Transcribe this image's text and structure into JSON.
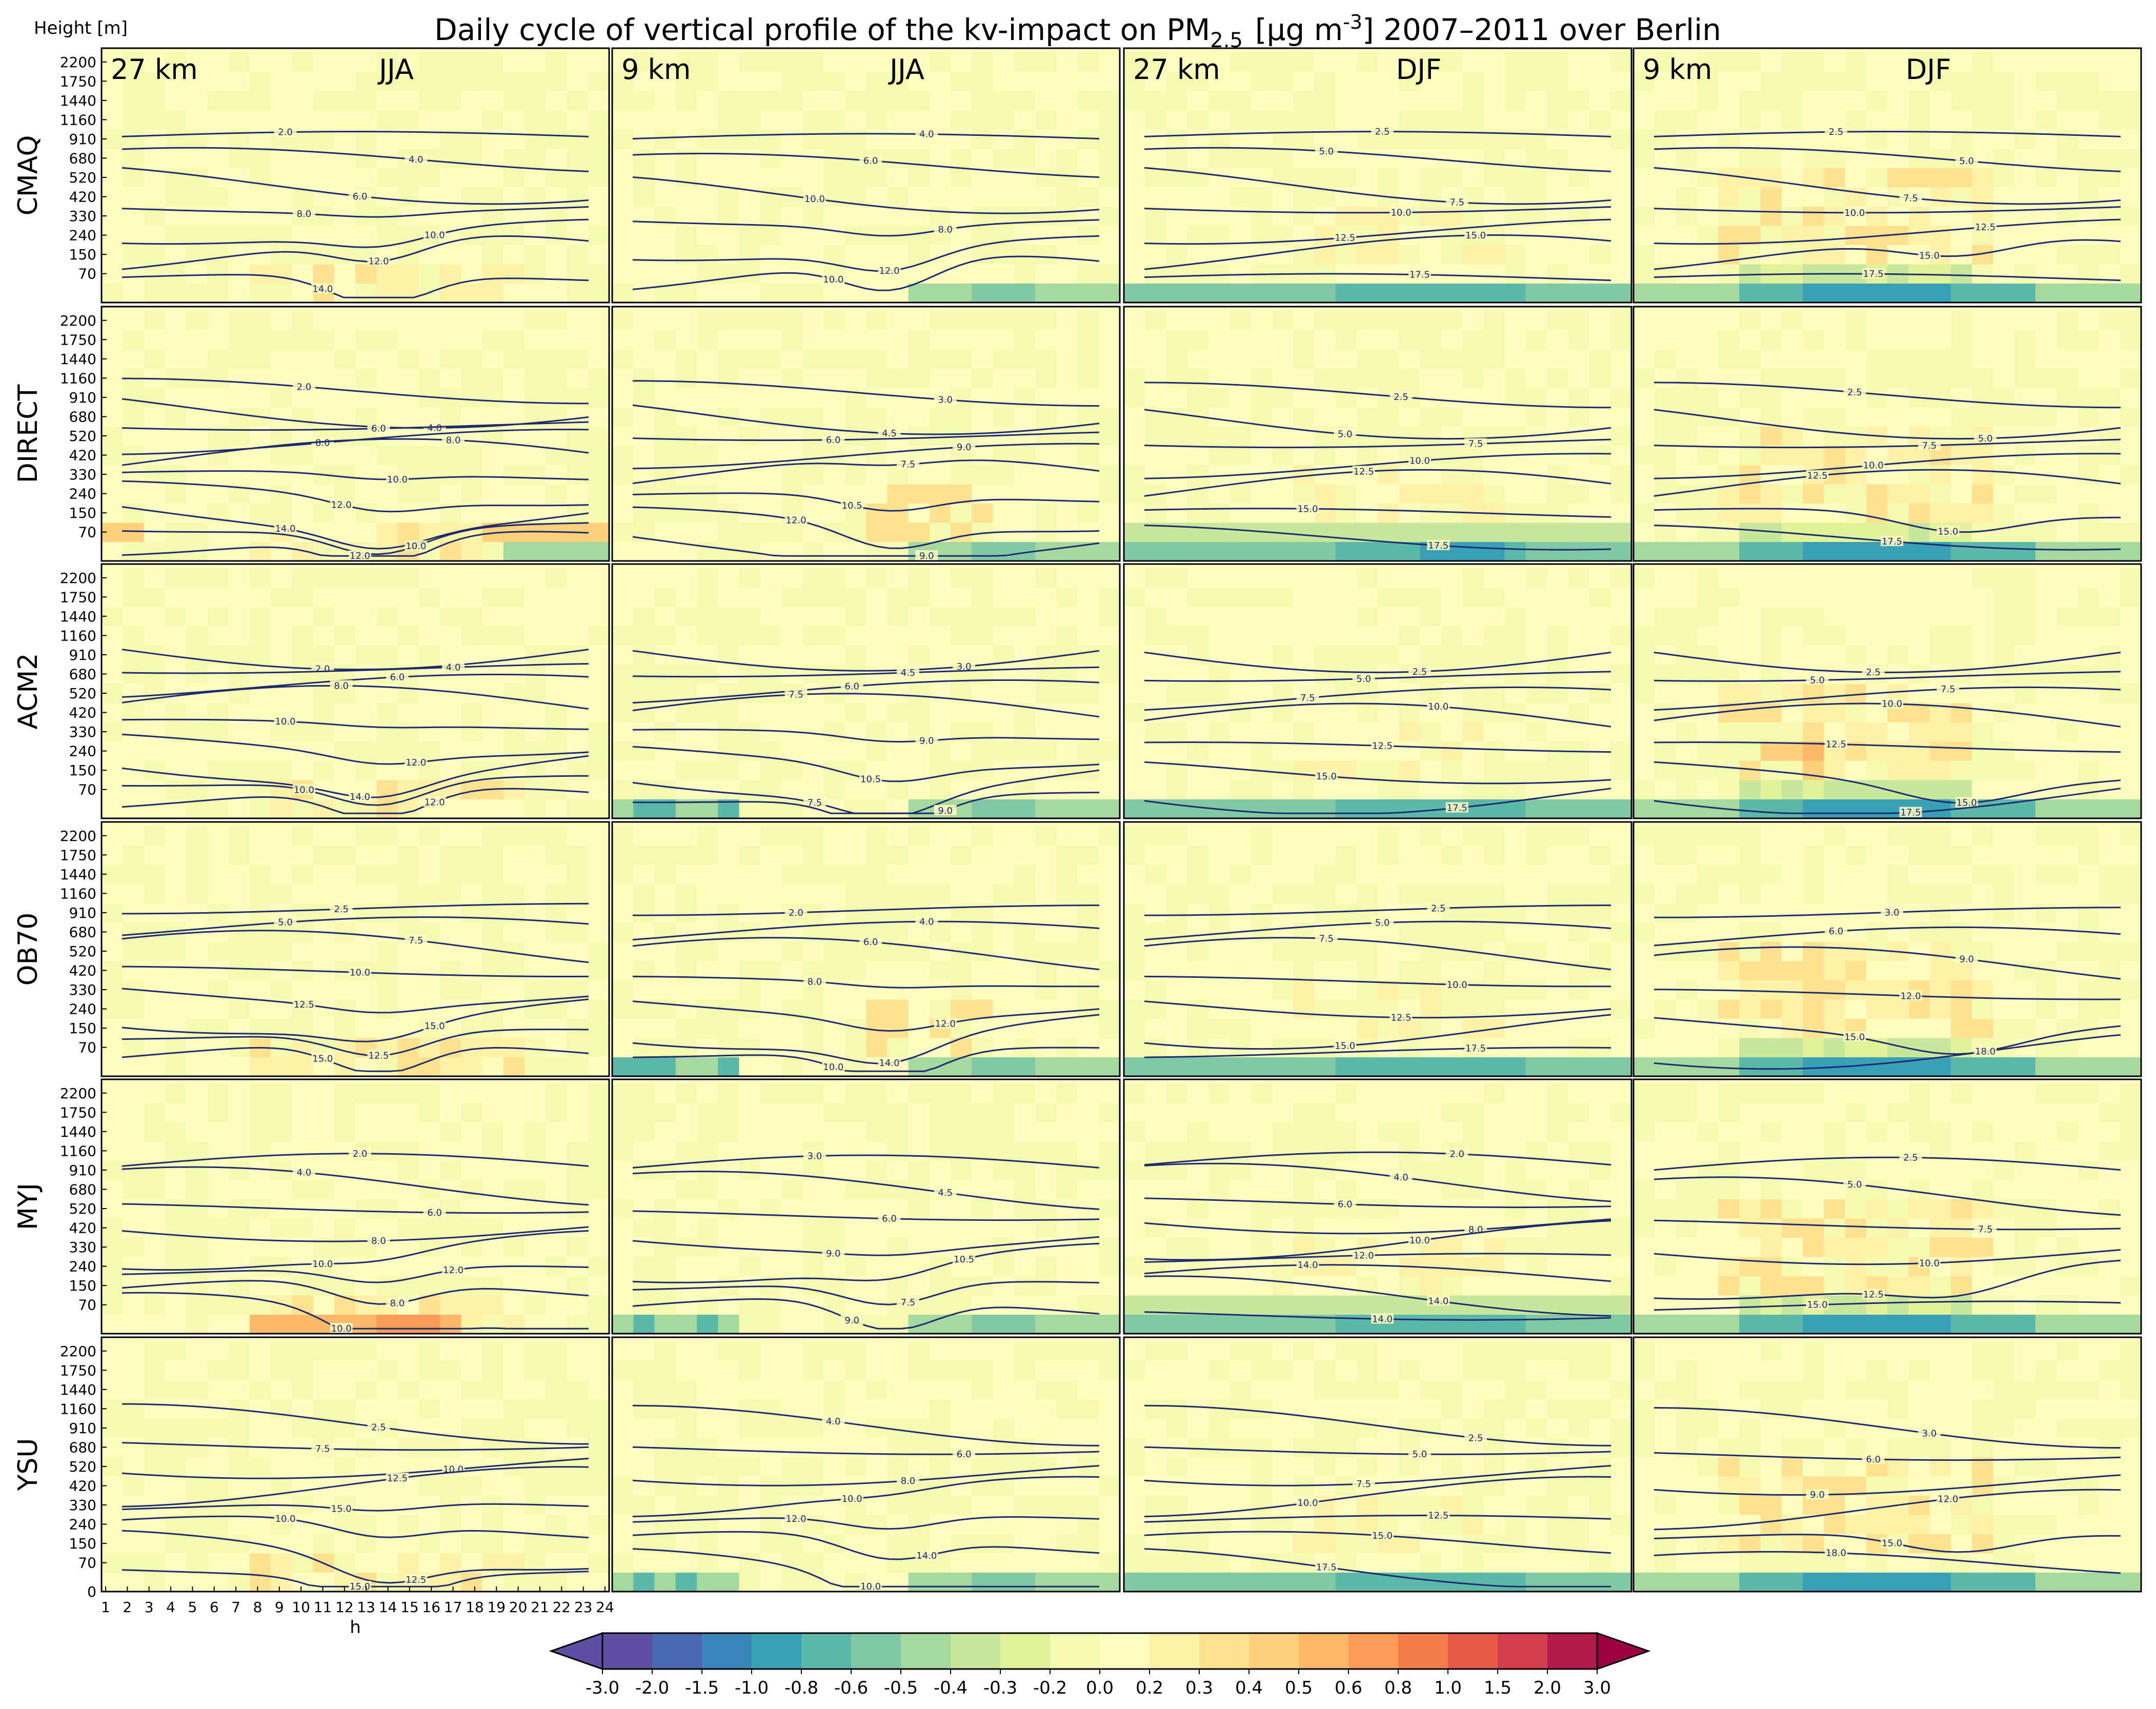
{
  "chart_data": {
    "type": "heatmap",
    "title": "Daily cycle of vertical profile of the kv-impact on PM",
    "title_subscript": "2.5",
    "title_unit": "[μg m",
    "title_unit_exp": "-3",
    "title_tail": "] 2007–2011 over Berlin",
    "ylabel": "Height [m]",
    "xlabel": "h",
    "x_ticks": [
      "1",
      "2",
      "3",
      "4",
      "5",
      "6",
      "7",
      "8",
      "9",
      "10",
      "11",
      "12",
      "13",
      "14",
      "15",
      "16",
      "17",
      "18",
      "19",
      "20",
      "21",
      "22",
      "23",
      "24"
    ],
    "y_ticks": [
      "0",
      "70",
      "150",
      "240",
      "330",
      "420",
      "520",
      "680",
      "910",
      "1160",
      "1440",
      "1750",
      "2200"
    ],
    "columns": [
      {
        "resolution": "27 km",
        "season": "JJA"
      },
      {
        "resolution": "9 km",
        "season": "JJA"
      },
      {
        "resolution": "27 km",
        "season": "DJF"
      },
      {
        "resolution": "9 km",
        "season": "DJF"
      }
    ],
    "rows": [
      "CMAQ",
      "DIRECT",
      "ACM2",
      "OB70",
      "MYJ",
      "YSU"
    ],
    "contour_labels": [
      [
        [
          "2.0",
          "4.0",
          "6.0",
          "8.0",
          "10.0",
          "12.0",
          "14.0"
        ],
        [
          "4.0",
          "6.0",
          "10.0",
          "8.0",
          "12.0",
          "10.0"
        ],
        [
          "2.5",
          "5.0",
          "7.5",
          "10.0",
          "12.5",
          "15.0",
          "17.5"
        ],
        [
          "2.5",
          "5.0",
          "7.5",
          "10.0",
          "12.5",
          "15.0",
          "17.5"
        ]
      ],
      [
        [
          "2.0",
          "4.0",
          "6.0",
          "8.0",
          "8.0",
          "10.0",
          "12.0",
          "14.0",
          "10.0",
          "12.0"
        ],
        [
          "3.0",
          "4.5",
          "6.0",
          "9.0",
          "7.5",
          "10.5",
          "12.0",
          "9.0"
        ],
        [
          "2.5",
          "5.0",
          "7.5",
          "10.0",
          "12.5",
          "15.0",
          "17.5"
        ],
        [
          "2.5",
          "5.0",
          "7.5",
          "10.0",
          "12.5",
          "15.0",
          "17.5"
        ]
      ],
      [
        [
          "2.0",
          "4.0",
          "6.0",
          "8.0",
          "10.0",
          "12.0",
          "14.0",
          "10.0",
          "12.0"
        ],
        [
          "3.0",
          "4.5",
          "6.0",
          "7.5",
          "9.0",
          "10.5",
          "7.5",
          "9.0"
        ],
        [
          "2.5",
          "5.0",
          "7.5",
          "10.0",
          "12.5",
          "15.0",
          "17.5"
        ],
        [
          "2.5",
          "5.0",
          "7.5",
          "10.0",
          "12.5",
          "15.0",
          "17.5"
        ]
      ],
      [
        [
          "2.5",
          "5.0",
          "7.5",
          "10.0",
          "12.5",
          "15.0",
          "12.5",
          "15.0"
        ],
        [
          "2.0",
          "4.0",
          "6.0",
          "8.0",
          "12.0",
          "14.0",
          "10.0"
        ],
        [
          "2.5",
          "5.0",
          "7.5",
          "10.0",
          "12.5",
          "15.0",
          "17.5"
        ],
        [
          "3.0",
          "6.0",
          "9.0",
          "12.0",
          "15.0",
          "18.0"
        ]
      ],
      [
        [
          "2.0",
          "4.0",
          "6.0",
          "8.0",
          "10.0",
          "12.0",
          "8.0",
          "10.0"
        ],
        [
          "3.0",
          "4.5",
          "6.0",
          "9.0",
          "10.5",
          "7.5",
          "9.0"
        ],
        [
          "2.0",
          "4.0",
          "6.0",
          "8.0",
          "10.0",
          "12.0",
          "14.0",
          "14.0",
          "14.0"
        ],
        [
          "2.5",
          "5.0",
          "7.5",
          "10.0",
          "12.5",
          "15.0"
        ]
      ],
      [
        [
          "2.5",
          "7.5",
          "10.0",
          "12.5",
          "15.0",
          "10.0",
          "12.5",
          "15.0"
        ],
        [
          "4.0",
          "6.0",
          "8.0",
          "10.0",
          "12.0",
          "14.0",
          "10.0"
        ],
        [
          "2.5",
          "5.0",
          "7.5",
          "10.0",
          "12.5",
          "15.0",
          "17.5"
        ],
        [
          "3.0",
          "6.0",
          "9.0",
          "12.0",
          "15.0",
          "18.0"
        ]
      ]
    ],
    "colorbar": {
      "ticks": [
        "-3.0",
        "-2.0",
        "-1.5",
        "-1.0",
        "-0.8",
        "-0.6",
        "-0.5",
        "-0.4",
        "-0.3",
        "-0.2",
        "0.0",
        "0.2",
        "0.3",
        "0.4",
        "0.5",
        "0.6",
        "0.8",
        "1.0",
        "1.5",
        "2.0",
        "3.0"
      ],
      "colors": [
        "#5e4fa2",
        "#4a67b1",
        "#3a86bc",
        "#3aa0b5",
        "#5cb8a8",
        "#80c9a4",
        "#a6d9a0",
        "#c8e79d",
        "#e2f29b",
        "#f4fab0",
        "#fefec0",
        "#fef2a8",
        "#fee290",
        "#fed17c",
        "#fdb86a",
        "#fa9c58",
        "#f47d4b",
        "#e75b46",
        "#d53e4f",
        "#b31b4c"
      ],
      "extend": "both"
    },
    "colors": {
      "contour": "#1c2a6e",
      "base": "#fefec0",
      "frame": "#000000"
    }
  }
}
